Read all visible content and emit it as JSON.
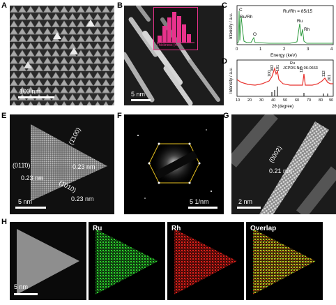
{
  "panels": {
    "A": {
      "label": "A",
      "scale": "100 nm"
    },
    "B": {
      "label": "B",
      "scale": "5 nm",
      "inset_xlabel": "Thickness (nm)"
    },
    "C": {
      "label": "C",
      "ylabel": "Intensity / a.u.",
      "xlabel": "Energy (keV)",
      "ratio": "Ru/Rh = 85/15",
      "peaks": [
        {
          "t": "C"
        },
        {
          "t": "Ru/Rh"
        },
        {
          "t": "O"
        },
        {
          "t": "Ru"
        },
        {
          "t": "Rh"
        }
      ],
      "ticks": [
        "0",
        "1",
        "2",
        "3",
        "4"
      ]
    },
    "D": {
      "label": "D",
      "ylabel": "Intensity / a.u.",
      "xlabel": "2θ (degree)",
      "ref": "Ru",
      "jcpds": "JCPDS No. 06-0663",
      "peaks": [
        "100",
        "002",
        "101",
        "110",
        "112",
        "201"
      ],
      "ticks": [
        "10",
        "20",
        "30",
        "40",
        "50",
        "60",
        "70",
        "80",
        "90"
      ]
    },
    "E": {
      "label": "E",
      "scale": "5 nm",
      "ann": [
        "(1̄100)",
        "(011̄0)",
        "0.23 nm",
        "0.23 nm",
        "(1̄010)",
        "0.23 nm"
      ]
    },
    "F": {
      "label": "F",
      "scale": "5 1/nm"
    },
    "G": {
      "label": "G",
      "scale": "2 nm",
      "plane": "(0002)",
      "spacing": "0.21 nm"
    },
    "H": {
      "label": "H",
      "scale": "5 nm",
      "maps": [
        "Ru",
        "Rh",
        "Overlap"
      ]
    }
  },
  "colors": {
    "edx": "#2e9b3e",
    "xrd": "#e8322d",
    "ru": "#2bd32b",
    "rh": "#e0201a",
    "hist": "#e8328c"
  }
}
